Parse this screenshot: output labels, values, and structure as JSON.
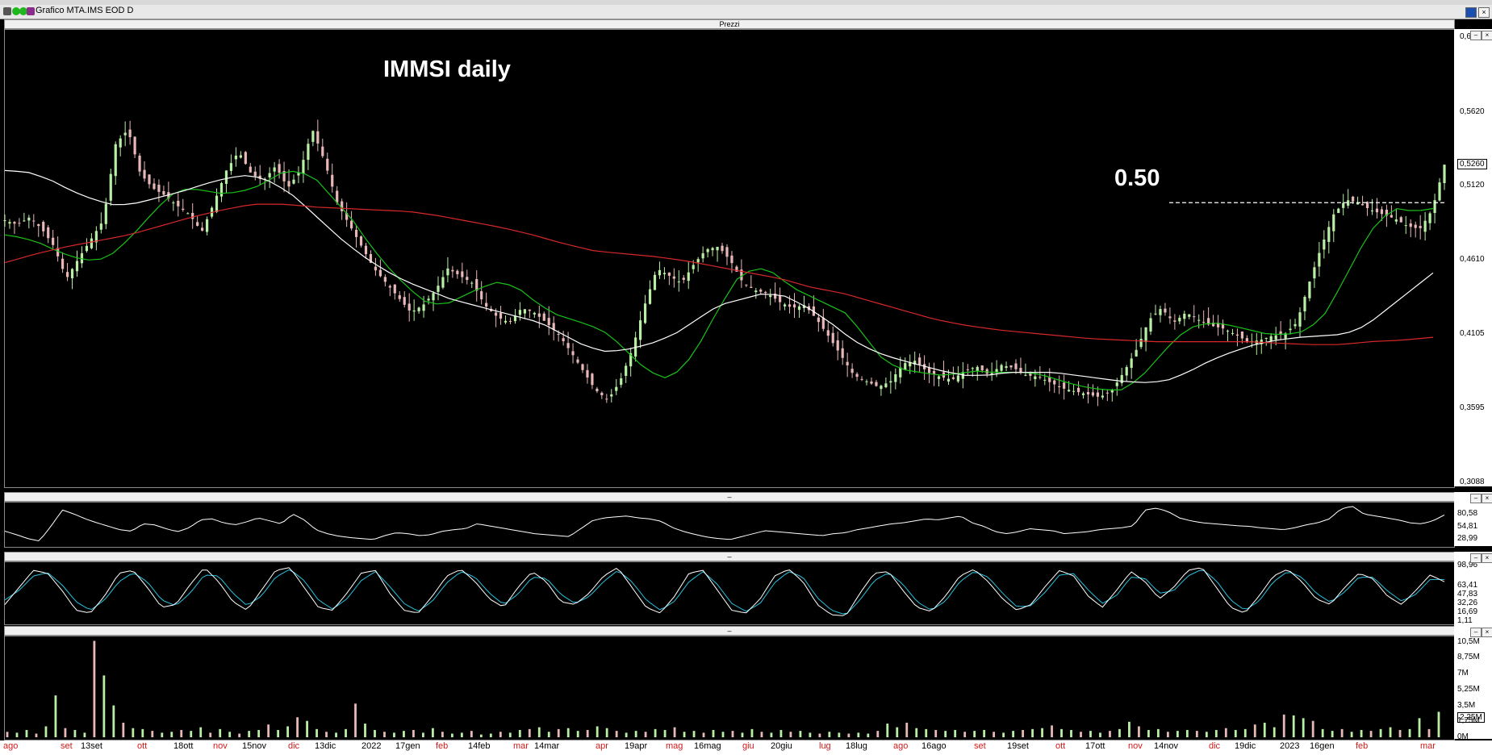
{
  "window": {
    "title": "Grafico MTA.IMS EOD D",
    "pane_title": "Prezzi",
    "collapse_glyph": "–"
  },
  "annotations": {
    "title": "IMMSI daily",
    "level_label": "0.50"
  },
  "colors": {
    "background": "#000000",
    "bull_candle": "#b9efa5",
    "bear_candle": "#e8b7b7",
    "ma_short": "#19c219",
    "ma_medium": "#ffffff",
    "ma_long": "#d8282a",
    "stoch_k": "#ffffff",
    "stoch_d": "#27c2df",
    "volume_up": "#b9efa5",
    "volume_down": "#e8b7b7"
  },
  "icons": [
    "menu-icon",
    "green-dot-icon",
    "green-dot-icon",
    "purple-tag-icon",
    "minimize-icon",
    "close-icon"
  ],
  "chart_data": [
    {
      "type": "candlestick",
      "name": "Prezzi",
      "title": "IMMSI daily",
      "ylim": [
        0.3088,
        0.6132
      ],
      "yticks": [
        "0,6132",
        "0,5620",
        "0,5120",
        "0,4610",
        "0,4105",
        "0,3595",
        "0,3088"
      ],
      "last_price_label": "0,5260",
      "horizontal_level": {
        "value": 0.5,
        "label": "0.50",
        "style": "dashed"
      },
      "x_labels": [
        {
          "text": "ago",
          "red": true
        },
        {
          "text": "set",
          "red": true
        },
        {
          "text": "13set",
          "red": false
        },
        {
          "text": "ott",
          "red": true
        },
        {
          "text": "18ott",
          "red": false
        },
        {
          "text": "nov",
          "red": true
        },
        {
          "text": "15nov",
          "red": false
        },
        {
          "text": "dic",
          "red": true
        },
        {
          "text": "13dic",
          "red": false
        },
        {
          "text": "2022",
          "red": false
        },
        {
          "text": "17gen",
          "red": false
        },
        {
          "text": "feb",
          "red": true
        },
        {
          "text": "14feb",
          "red": false
        },
        {
          "text": "mar",
          "red": true
        },
        {
          "text": "14mar",
          "red": false
        },
        {
          "text": "apr",
          "red": true
        },
        {
          "text": "19apr",
          "red": false
        },
        {
          "text": "mag",
          "red": true
        },
        {
          "text": "16mag",
          "red": false
        },
        {
          "text": "giu",
          "red": true
        },
        {
          "text": "20giu",
          "red": false
        },
        {
          "text": "lug",
          "red": true
        },
        {
          "text": "18lug",
          "red": false
        },
        {
          "text": "ago",
          "red": true
        },
        {
          "text": "16ago",
          "red": false
        },
        {
          "text": "set",
          "red": true
        },
        {
          "text": "19set",
          "red": false
        },
        {
          "text": "ott",
          "red": true
        },
        {
          "text": "17ott",
          "red": false
        },
        {
          "text": "nov",
          "red": true
        },
        {
          "text": "14nov",
          "red": false
        },
        {
          "text": "dic",
          "red": true
        },
        {
          "text": "19dic",
          "red": false
        },
        {
          "text": "2023",
          "red": false
        },
        {
          "text": "16gen",
          "red": false
        },
        {
          "text": "feb",
          "red": true
        },
        {
          "text": "mar",
          "red": true
        }
      ],
      "close_path": [
        0.488,
        0.485,
        0.49,
        0.482,
        0.47,
        0.448,
        0.462,
        0.475,
        0.488,
        0.54,
        0.55,
        0.52,
        0.51,
        0.505,
        0.498,
        0.492,
        0.48,
        0.5,
        0.522,
        0.535,
        0.52,
        0.515,
        0.525,
        0.51,
        0.522,
        0.55,
        0.528,
        0.5,
        0.485,
        0.47,
        0.455,
        0.445,
        0.435,
        0.425,
        0.43,
        0.44,
        0.455,
        0.45,
        0.445,
        0.43,
        0.422,
        0.418,
        0.428,
        0.425,
        0.418,
        0.41,
        0.398,
        0.385,
        0.372,
        0.365,
        0.378,
        0.4,
        0.43,
        0.455,
        0.45,
        0.445,
        0.458,
        0.468,
        0.47,
        0.46,
        0.445,
        0.44,
        0.438,
        0.432,
        0.428,
        0.43,
        0.42,
        0.408,
        0.395,
        0.382,
        0.378,
        0.374,
        0.378,
        0.39,
        0.392,
        0.384,
        0.381,
        0.379,
        0.385,
        0.388,
        0.382,
        0.389,
        0.387,
        0.382,
        0.381,
        0.377,
        0.373,
        0.371,
        0.369,
        0.367,
        0.372,
        0.385,
        0.4,
        0.42,
        0.428,
        0.418,
        0.425,
        0.42,
        0.416,
        0.414,
        0.41,
        0.405,
        0.406,
        0.409,
        0.41,
        0.418,
        0.445,
        0.47,
        0.492,
        0.502,
        0.5,
        0.495,
        0.492,
        0.489,
        0.484,
        0.482,
        0.495,
        0.526
      ],
      "ma_short_path": [
        0.478,
        0.476,
        0.472,
        0.466,
        0.462,
        0.46,
        0.466,
        0.478,
        0.492,
        0.505,
        0.51,
        0.508,
        0.506,
        0.508,
        0.512,
        0.52,
        0.522,
        0.516,
        0.502,
        0.488,
        0.47,
        0.455,
        0.442,
        0.432,
        0.43,
        0.436,
        0.442,
        0.446,
        0.442,
        0.432,
        0.424,
        0.42,
        0.416,
        0.41,
        0.398,
        0.386,
        0.38,
        0.386,
        0.405,
        0.428,
        0.448,
        0.456,
        0.452,
        0.442,
        0.436,
        0.43,
        0.424,
        0.408,
        0.392,
        0.386,
        0.384,
        0.382,
        0.383,
        0.385,
        0.384,
        0.384,
        0.384,
        0.381,
        0.377,
        0.374,
        0.372,
        0.372,
        0.38,
        0.394,
        0.408,
        0.416,
        0.418,
        0.416,
        0.413,
        0.41,
        0.41,
        0.412,
        0.422,
        0.444,
        0.468,
        0.488,
        0.496,
        0.494,
        0.496
      ],
      "ma_medium_path": [
        0.522,
        0.521,
        0.516,
        0.508,
        0.502,
        0.498,
        0.5,
        0.504,
        0.508,
        0.513,
        0.517,
        0.519,
        0.514,
        0.504,
        0.49,
        0.476,
        0.464,
        0.454,
        0.446,
        0.44,
        0.434,
        0.43,
        0.426,
        0.422,
        0.418,
        0.41,
        0.402,
        0.398,
        0.4,
        0.404,
        0.41,
        0.42,
        0.43,
        0.434,
        0.438,
        0.436,
        0.428,
        0.418,
        0.406,
        0.398,
        0.393,
        0.389,
        0.385,
        0.382,
        0.382,
        0.384,
        0.384,
        0.384,
        0.382,
        0.38,
        0.378,
        0.377,
        0.378,
        0.384,
        0.392,
        0.398,
        0.403,
        0.406,
        0.408,
        0.409,
        0.41,
        0.416,
        0.428,
        0.44,
        0.452
      ],
      "ma_long_path": [
        0.459,
        0.465,
        0.47,
        0.474,
        0.478,
        0.484,
        0.49,
        0.495,
        0.499,
        0.499,
        0.497,
        0.496,
        0.495,
        0.494,
        0.491,
        0.487,
        0.483,
        0.478,
        0.472,
        0.467,
        0.465,
        0.463,
        0.46,
        0.456,
        0.452,
        0.448,
        0.442,
        0.438,
        0.432,
        0.426,
        0.42,
        0.416,
        0.413,
        0.411,
        0.409,
        0.407,
        0.406,
        0.405,
        0.405,
        0.405,
        0.405,
        0.404,
        0.403,
        0.403,
        0.405,
        0.406,
        0.408
      ],
      "series": [
        {
          "name": "",
          "kind": "ma_short"
        },
        {
          "name": "",
          "kind": "ma_medium"
        },
        {
          "name": "",
          "kind": "ma_long"
        }
      ]
    },
    {
      "type": "line",
      "name": "oscillator",
      "ylim": [
        18.0,
        100.0
      ],
      "yticks": [
        "80,58",
        "54,81",
        "28,99"
      ],
      "values": [
        45,
        38,
        30,
        25,
        55,
        88,
        80,
        70,
        62,
        55,
        48,
        45,
        60,
        58,
        50,
        44,
        52,
        68,
        70,
        62,
        58,
        64,
        72,
        66,
        60,
        80,
        68,
        48,
        40,
        35,
        32,
        30,
        28,
        36,
        42,
        40,
        36,
        38,
        45,
        48,
        50,
        60,
        56,
        52,
        48,
        44,
        40,
        38,
        36,
        34,
        50,
        66,
        72,
        74,
        76,
        72,
        70,
        65,
        52,
        44,
        38,
        33,
        30,
        28,
        34,
        40,
        46,
        44,
        42,
        40,
        38,
        36,
        40,
        42,
        48,
        52,
        56,
        60,
        62,
        66,
        70,
        68,
        72,
        76,
        62,
        55,
        44,
        40,
        44,
        50,
        48,
        46,
        40,
        42,
        44,
        48,
        50,
        52,
        56,
        88,
        92,
        85,
        72,
        66,
        62,
        60,
        58,
        56,
        55,
        52,
        50,
        48,
        52,
        58,
        62,
        70,
        90,
        96,
        80,
        76,
        72,
        68,
        62,
        60,
        66,
        78
      ]
    },
    {
      "type": "line",
      "name": "stochastic",
      "ylim": [
        1.0,
        100.0
      ],
      "yticks": [
        "98,96",
        "63,41",
        "47,83",
        "32,26",
        "16,69",
        "1,11"
      ],
      "k_values": [
        30,
        60,
        90,
        85,
        55,
        20,
        15,
        45,
        85,
        90,
        60,
        25,
        30,
        65,
        95,
        70,
        35,
        20,
        55,
        90,
        95,
        60,
        25,
        20,
        50,
        85,
        90,
        50,
        20,
        15,
        45,
        80,
        92,
        70,
        40,
        25,
        60,
        88,
        70,
        35,
        30,
        50,
        80,
        95,
        60,
        25,
        15,
        45,
        85,
        90,
        55,
        20,
        15,
        40,
        80,
        92,
        70,
        30,
        12,
        10,
        50,
        85,
        88,
        55,
        25,
        18,
        45,
        80,
        92,
        70,
        40,
        20,
        30,
        62,
        90,
        80,
        45,
        25,
        55,
        88,
        70,
        40,
        60,
        90,
        95,
        60,
        25,
        15,
        45,
        80,
        92,
        70,
        40,
        30,
        60,
        85,
        75,
        45,
        30,
        55,
        82,
        70
      ],
      "d_values": [
        38,
        55,
        80,
        86,
        65,
        35,
        20,
        38,
        70,
        86,
        70,
        38,
        28,
        50,
        82,
        80,
        50,
        28,
        45,
        78,
        92,
        72,
        38,
        22,
        40,
        72,
        88,
        62,
        32,
        18,
        36,
        68,
        88,
        78,
        50,
        30,
        48,
        78,
        76,
        48,
        32,
        44,
        70,
        90,
        70,
        38,
        20,
        36,
        70,
        88,
        65,
        32,
        18,
        32,
        68,
        88,
        78,
        42,
        20,
        12,
        38,
        72,
        86,
        66,
        35,
        20,
        36,
        70,
        88,
        78,
        50,
        26,
        28,
        52,
        82,
        84,
        56,
        32,
        46,
        78,
        76,
        50,
        54,
        80,
        92,
        72,
        38,
        20,
        36,
        70,
        88,
        78,
        50,
        34,
        52,
        78,
        78,
        54,
        36,
        48,
        74,
        74
      ]
    },
    {
      "type": "bar",
      "name": "volume",
      "ylim": [
        0,
        11.0
      ],
      "yticks": [
        "10,5M",
        "8,75M",
        "7M",
        "5,25M",
        "3,5M",
        "2,25M",
        "1,75M",
        "0M"
      ],
      "volume_label_boxed": "2,25M",
      "values_millions": [
        0.6,
        0.5,
        0.8,
        0.4,
        1.2,
        4.6,
        1.0,
        0.8,
        0.5,
        10.6,
        6.8,
        3.5,
        1.6,
        1.0,
        0.9,
        0.7,
        0.5,
        0.6,
        0.8,
        0.7,
        1.1,
        0.5,
        0.9,
        0.6,
        0.4,
        0.7,
        0.8,
        1.4,
        0.8,
        1.2,
        2.2,
        1.8,
        0.9,
        0.6,
        0.5,
        0.9,
        3.7,
        1.5,
        0.8,
        0.6,
        0.5,
        0.7,
        0.8,
        0.5,
        1.0,
        0.6,
        0.4,
        0.5,
        0.7,
        0.3,
        0.4,
        0.6,
        0.5,
        0.8,
        0.9,
        1.1,
        0.6,
        0.9,
        1.0,
        0.7,
        0.8,
        1.2,
        1.0,
        0.7,
        0.5,
        0.7,
        0.6,
        0.9,
        0.8,
        1.1,
        0.6,
        0.7,
        0.5,
        0.8,
        0.6,
        0.7,
        0.5,
        0.9,
        0.6,
        0.5,
        0.8,
        0.6,
        0.7,
        0.5,
        0.4,
        0.6,
        0.5,
        0.4,
        0.5,
        0.4,
        0.7,
        1.5,
        1.1,
        1.6,
        1.0,
        0.9,
        0.8,
        0.7,
        0.8,
        0.6,
        0.7,
        0.8,
        0.6,
        0.5,
        0.7,
        0.8,
        0.9,
        1.0,
        1.3,
        0.9,
        0.8,
        0.6,
        0.7,
        0.5,
        0.7,
        0.9,
        1.7,
        1.2,
        0.8,
        0.9,
        0.6,
        0.7,
        0.8,
        0.7,
        0.6,
        0.8,
        1.0,
        0.8,
        0.9,
        1.4,
        1.6,
        1.1,
        2.5,
        2.4,
        2.1,
        1.8,
        0.9,
        0.7,
        0.9,
        0.6,
        0.8,
        0.7,
        0.9,
        1.1,
        0.8,
        0.9,
        2.1,
        0.9,
        2.8
      ]
    }
  ]
}
